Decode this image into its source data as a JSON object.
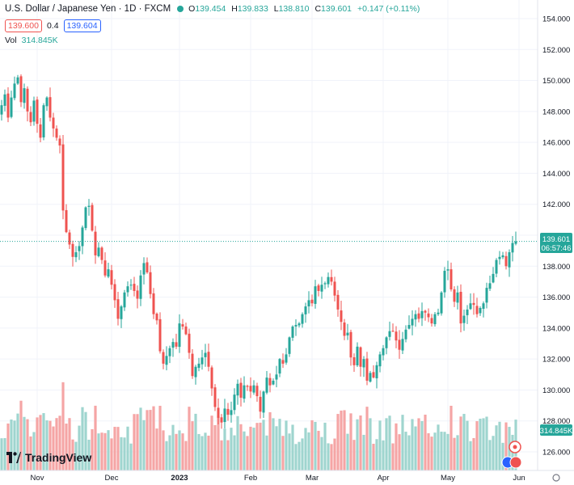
{
  "header": {
    "symbol": "U.S. Dollar / Japanese Yen · 1D · FXCM",
    "o_label": "O",
    "o": "139.454",
    "h_label": "H",
    "h": "139.833",
    "l_label": "L",
    "l": "138.810",
    "c_label": "C",
    "c": "139.601",
    "change": "+0.147 (+0.11%)"
  },
  "quote": {
    "sell": "139.600",
    "spread": "0.4",
    "buy": "139.604"
  },
  "volume": {
    "label": "Vol",
    "value": "314.845K"
  },
  "price_label": {
    "value": "139.601",
    "countdown": "06:57:46"
  },
  "volume_tag": "314.845K",
  "brand": "TradingView",
  "colors": {
    "up": "#26a69a",
    "down": "#ef5350",
    "vol_up": "#9fd5cf",
    "vol_down": "#f5a5a5"
  },
  "chart_data": {
    "type": "candlestick",
    "title": "U.S. Dollar / Japanese Yen · 1D · FXCM",
    "ylim": [
      124.8,
      155.2
    ],
    "y_ticks": [
      126,
      128,
      130,
      132,
      134,
      136,
      138,
      140,
      142,
      144,
      146,
      148,
      150,
      152,
      154
    ],
    "x_ticks": [
      "Nov",
      "Dec",
      "2023",
      "Feb",
      "Mar",
      "Apr",
      "May",
      "Jun"
    ],
    "x_tick_index": [
      11,
      34,
      55,
      77,
      96,
      118,
      138,
      160
    ],
    "last_price": 139.601,
    "series": [
      {
        "name": "price",
        "closes": [
          148.4,
          149.1,
          147.6,
          148.9,
          149.8,
          150.2,
          148.6,
          149.5,
          148.0,
          147.3,
          148.7,
          147.2,
          146.3,
          148.4,
          148.9,
          147.6,
          146.9,
          146.3,
          145.8,
          141.6,
          140.2,
          139.4,
          138.6,
          138.9,
          139.3,
          140.5,
          141.8,
          141.9,
          140.3,
          138.7,
          139.2,
          138.4,
          137.4,
          137.8,
          136.8,
          135.8,
          134.6,
          135.4,
          136.3,
          136.7,
          136.8,
          136.4,
          135.9,
          137.4,
          138.2,
          137.6,
          136.2,
          134.9,
          134.5,
          132.5,
          131.7,
          132.2,
          132.7,
          133.1,
          132.8,
          134.3,
          134.1,
          133.6,
          132.4,
          130.9,
          131.5,
          131.7,
          132.1,
          132.4,
          131.5,
          130.1,
          128.9,
          128.2,
          127.9,
          128.8,
          128.4,
          128.7,
          129.7,
          130.4,
          129.5,
          130.3,
          130.2,
          129.9,
          130.3,
          129.6,
          128.6,
          129.9,
          130.8,
          130.3,
          130.6,
          131.0,
          132.0,
          131.7,
          132.3,
          133.4,
          134.1,
          134.2,
          134.3,
          134.9,
          135.4,
          135.8,
          135.6,
          136.7,
          136.4,
          136.8,
          136.9,
          137.3,
          137.0,
          136.1,
          135.2,
          134.4,
          133.5,
          133.7,
          132.1,
          131.6,
          132.8,
          131.5,
          132.0,
          130.6,
          131.1,
          130.8,
          131.6,
          132.3,
          132.7,
          133.4,
          133.8,
          133.8,
          133.2,
          132.6,
          133.3,
          133.9,
          134.2,
          134.6,
          134.9,
          134.6,
          135.1,
          135.0,
          134.7,
          134.3,
          134.9,
          135.0,
          136.3,
          137.7,
          137.8,
          136.5,
          135.7,
          136.3,
          134.3,
          134.8,
          135.2,
          135.6,
          135.5,
          134.9,
          135.3,
          135.6,
          136.6,
          136.9,
          137.5,
          138.4,
          138.6,
          138.7,
          138.0,
          138.9,
          139.5,
          139.6
        ]
      }
    ],
    "volume_series": {
      "name": "Vol"
    }
  }
}
